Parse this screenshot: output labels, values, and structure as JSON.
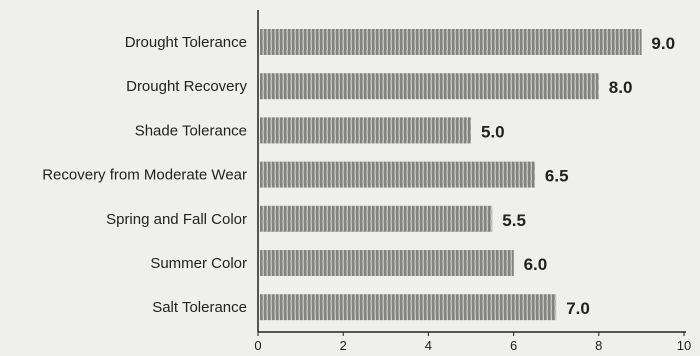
{
  "chart_data": {
    "type": "bar",
    "orientation": "horizontal",
    "categories": [
      "Drought Tolerance",
      "Drought Recovery",
      "Shade Tolerance",
      "Recovery from Moderate Wear",
      "Spring and Fall Color",
      "Summer Color",
      "Salt Tolerance"
    ],
    "values": [
      9.0,
      8.0,
      5.0,
      6.5,
      5.5,
      6.0,
      7.0
    ],
    "value_labels": [
      "9.0",
      "8.0",
      "5.0",
      "6.5",
      "5.5",
      "6.0",
      "7.0"
    ],
    "xticks": [
      "0",
      "2",
      "4",
      "6",
      "8",
      "10"
    ],
    "xlim": [
      0,
      10
    ],
    "title": "",
    "xlabel": "",
    "ylabel": "",
    "grid": false,
    "bar_color": "#7a7a7a"
  }
}
